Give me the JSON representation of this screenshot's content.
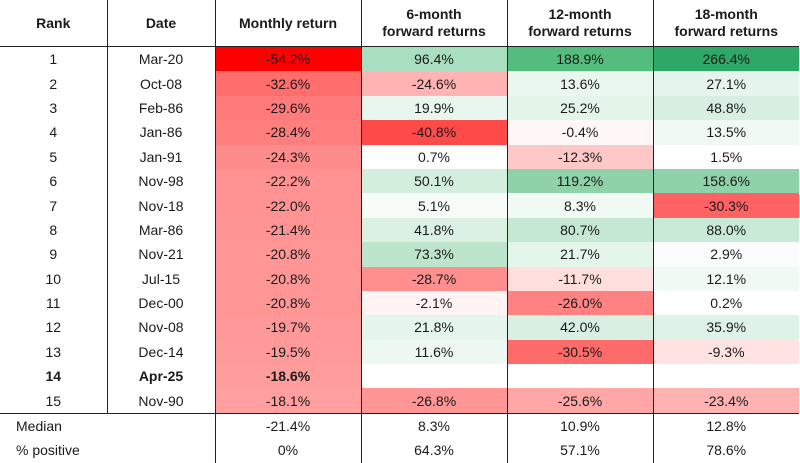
{
  "headers": {
    "rank": "Rank",
    "date": "Date",
    "monthly": "Monthly return",
    "six_month": [
      "6-month",
      "forward returns"
    ],
    "twelve_month": [
      "12-month",
      "forward returns"
    ],
    "eighteen_month": [
      "18-month",
      "forward returns"
    ]
  },
  "rows": [
    {
      "rank": "1",
      "date": "Mar-20",
      "monthly": "-54.2%",
      "m6": "96.4%",
      "m12": "188.9%",
      "m18": "266.4%",
      "bold": false,
      "colors": {
        "monthly": "#ff0000",
        "m6": "#a8dfc0",
        "m12": "#54bd7e",
        "m18": "#2ea866"
      }
    },
    {
      "rank": "2",
      "date": "Oct-08",
      "monthly": "-32.6%",
      "m6": "-24.6%",
      "m12": "13.6%",
      "m18": "27.1%",
      "bold": false,
      "colors": {
        "monthly": "#ff6d6d",
        "m6": "#ffb3b3",
        "m12": "#eaf7ef",
        "m18": "#e6f5ec"
      }
    },
    {
      "rank": "3",
      "date": "Feb-86",
      "monthly": "-29.6%",
      "m6": "19.9%",
      "m12": "25.2%",
      "m18": "48.8%",
      "bold": false,
      "colors": {
        "monthly": "#ff7a7a",
        "m6": "#e8f6ed",
        "m12": "#e3f4e9",
        "m18": "#d7efe1"
      }
    },
    {
      "rank": "4",
      "date": "Jan-86",
      "monthly": "-28.4%",
      "m6": "-40.8%",
      "m12": "-0.4%",
      "m18": "13.5%",
      "bold": false,
      "colors": {
        "monthly": "#ff7e7e",
        "m6": "#ff4a4a",
        "m12": "#fff7f7",
        "m18": "#f0f9f3"
      }
    },
    {
      "rank": "5",
      "date": "Jan-91",
      "monthly": "-24.3%",
      "m6": "0.7%",
      "m12": "-12.3%",
      "m18": "1.5%",
      "bold": false,
      "colors": {
        "monthly": "#ff8c8c",
        "m6": "#ffffff",
        "m12": "#ffc8c8",
        "m18": "#ffffff"
      }
    },
    {
      "rank": "6",
      "date": "Nov-98",
      "monthly": "-22.2%",
      "m6": "50.1%",
      "m12": "119.2%",
      "m18": "158.6%",
      "bold": false,
      "colors": {
        "monthly": "#ff9292",
        "m6": "#d4eedd",
        "m12": "#8fd2aa",
        "m18": "#8fd2aa"
      }
    },
    {
      "rank": "7",
      "date": "Nov-18",
      "monthly": "-22.0%",
      "m6": "5.1%",
      "m12": "8.3%",
      "m18": "-30.3%",
      "bold": false,
      "colors": {
        "monthly": "#ff9292",
        "m6": "#f7fcf9",
        "m12": "#f2faf5",
        "m18": "#ff6262"
      }
    },
    {
      "rank": "8",
      "date": "Mar-86",
      "monthly": "-21.4%",
      "m6": "41.8%",
      "m12": "80.7%",
      "m18": "88.0%",
      "bold": false,
      "colors": {
        "monthly": "#ff9494",
        "m6": "#d9f0e3",
        "m12": "#c5e8d3",
        "m18": "#c7e9d5"
      }
    },
    {
      "rank": "9",
      "date": "Nov-21",
      "monthly": "-20.8%",
      "m6": "73.3%",
      "m12": "21.7%",
      "m18": "2.9%",
      "bold": false,
      "colors": {
        "monthly": "#ff9696",
        "m6": "#bde5cc",
        "m12": "#e4f5ea",
        "m18": "#fafdfb"
      }
    },
    {
      "rank": "10",
      "date": "Jul-15",
      "monthly": "-20.8%",
      "m6": "-28.7%",
      "m12": "-11.7%",
      "m18": "12.1%",
      "bold": false,
      "colors": {
        "monthly": "#ff9696",
        "m6": "#ff8e8e",
        "m12": "#ffdede",
        "m18": "#f1f9f4"
      }
    },
    {
      "rank": "11",
      "date": "Dec-00",
      "monthly": "-20.8%",
      "m6": "-2.1%",
      "m12": "-26.0%",
      "m18": "0.2%",
      "bold": false,
      "colors": {
        "monthly": "#ff9696",
        "m6": "#fff3f3",
        "m12": "#ff8282",
        "m18": "#ffffff"
      }
    },
    {
      "rank": "12",
      "date": "Nov-08",
      "monthly": "-19.7%",
      "m6": "21.8%",
      "m12": "42.0%",
      "m18": "35.9%",
      "bold": false,
      "colors": {
        "monthly": "#ff9999",
        "m6": "#e5f5eb",
        "m12": "#d8efe2",
        "m18": "#dff2e7"
      }
    },
    {
      "rank": "13",
      "date": "Dec-14",
      "monthly": "-19.5%",
      "m6": "11.6%",
      "m12": "-30.5%",
      "m18": "-9.3%",
      "bold": false,
      "colors": {
        "monthly": "#ff9a9a",
        "m6": "#eef8f2",
        "m12": "#ff6a6a",
        "m18": "#ffe2e2"
      }
    },
    {
      "rank": "14",
      "date": "Apr-25",
      "monthly": "-18.6%",
      "m6": "",
      "m12": "",
      "m18": "",
      "bold": true,
      "colors": {
        "monthly": "#ff9d9d",
        "m6": "#ffffff",
        "m12": "#ffffff",
        "m18": "#ffffff"
      }
    },
    {
      "rank": "15",
      "date": "Nov-90",
      "monthly": "-18.1%",
      "m6": "-26.8%",
      "m12": "-25.6%",
      "m18": "-23.4%",
      "bold": false,
      "colors": {
        "monthly": "#ff9f9f",
        "m6": "#ff9595",
        "m12": "#ffa6a6",
        "m18": "#ffb2b2"
      }
    }
  ],
  "summary": [
    {
      "label": "Median",
      "monthly": "-21.4%",
      "m6": "8.3%",
      "m12": "10.9%",
      "m18": "12.8%"
    },
    {
      "label": "% positive",
      "monthly": "0%",
      "m6": "64.3%",
      "m12": "57.1%",
      "m18": "78.6%"
    }
  ]
}
